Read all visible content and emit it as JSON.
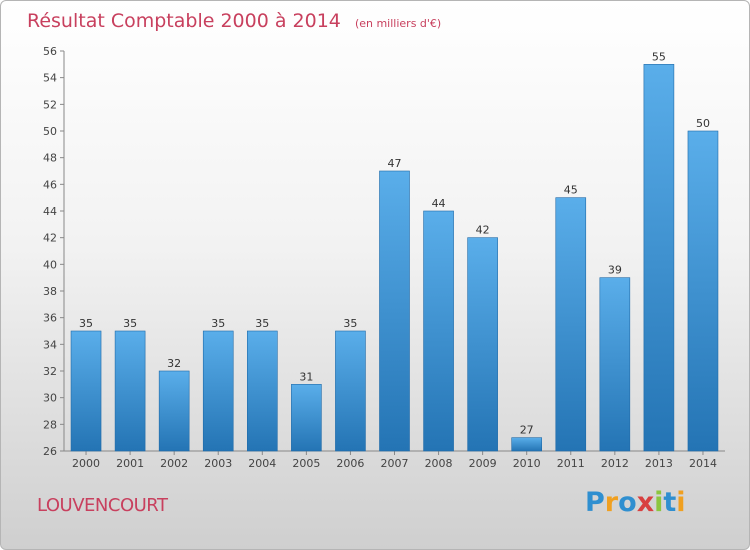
{
  "chart_data": {
    "type": "bar",
    "title": "Résultat Comptable 2000 à 2014",
    "subtitle": "(en milliers d'€)",
    "categories": [
      "2000",
      "2001",
      "2002",
      "2003",
      "2004",
      "2005",
      "2006",
      "2007",
      "2008",
      "2009",
      "2010",
      "2011",
      "2012",
      "2013",
      "2014"
    ],
    "values": [
      35,
      35,
      32,
      35,
      35,
      31,
      35,
      47,
      44,
      42,
      27,
      45,
      39,
      55,
      50
    ],
    "ylim": [
      26,
      56
    ],
    "yticks": [
      26,
      28,
      30,
      32,
      34,
      36,
      38,
      40,
      42,
      44,
      46,
      48,
      50,
      52,
      54,
      56
    ],
    "grid": false,
    "bar_color_light": "#5aaeea",
    "bar_color_dark": "#2474b4"
  },
  "commune": "LOUVENCOURT",
  "logo": {
    "letters": [
      "P",
      "r",
      "o",
      "x",
      "i",
      "t",
      "i"
    ],
    "colors": [
      "#2f8fd0",
      "#f0a020",
      "#2f8fd0",
      "#d84040",
      "#8cc63f",
      "#2f8fd0",
      "#f0a020"
    ]
  }
}
